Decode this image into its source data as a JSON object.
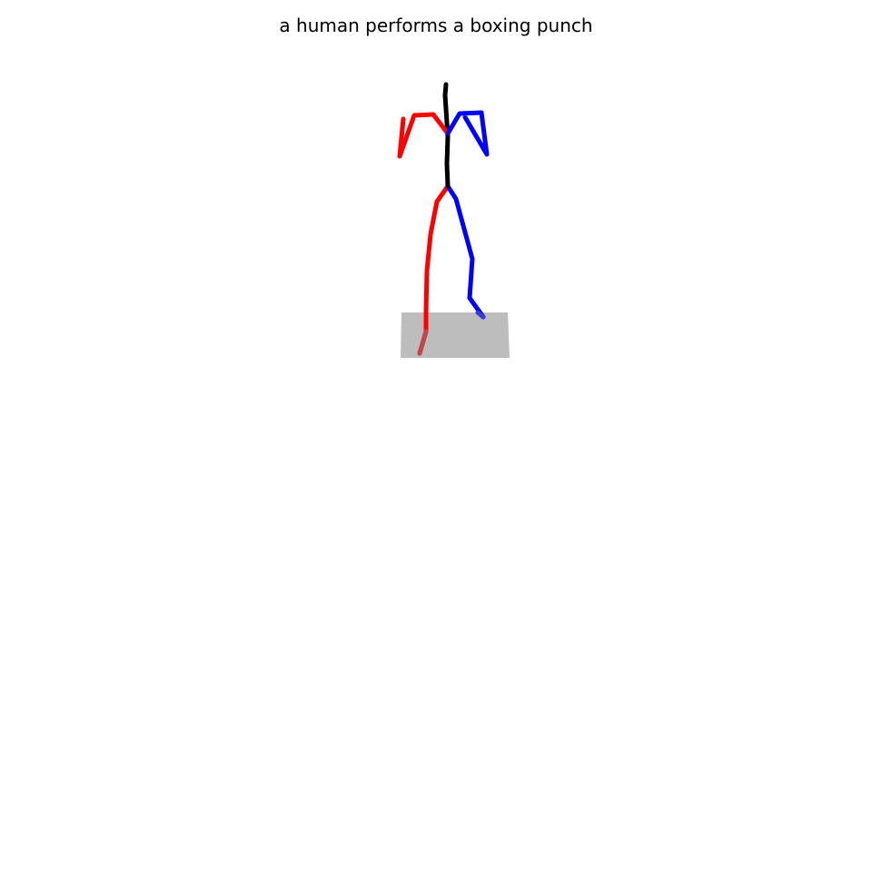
{
  "title": "a human performs a boxing punch",
  "colors": {
    "background": "#ffffff",
    "spine": "#000000",
    "right_side": "#ff0000",
    "left_side": "#0000ff",
    "ground_plane": "#bdbdbd"
  }
}
